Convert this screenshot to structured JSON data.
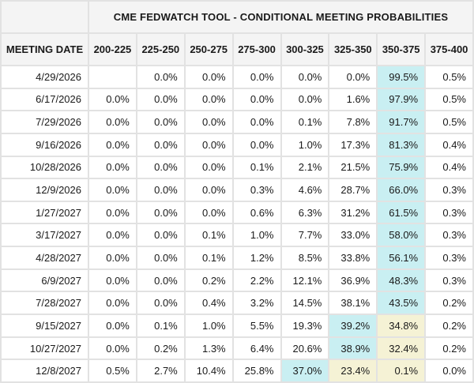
{
  "table": {
    "title": "CME FEDWATCH TOOL - CONDITIONAL MEETING PROBABILITIES",
    "date_column_header": "MEETING DATE",
    "rate_column_headers": [
      "200-225",
      "225-250",
      "250-275",
      "275-300",
      "300-325",
      "325-350",
      "350-375",
      "375-400"
    ],
    "rows": [
      {
        "date": "4/29/2026",
        "cells": [
          {
            "v": ""
          },
          {
            "v": "0.0%"
          },
          {
            "v": "0.0%"
          },
          {
            "v": "0.0%"
          },
          {
            "v": "0.0%"
          },
          {
            "v": "0.0%"
          },
          {
            "v": "99.5%",
            "hl": "cyan"
          },
          {
            "v": "0.5%"
          }
        ]
      },
      {
        "date": "6/17/2026",
        "cells": [
          {
            "v": "0.0%"
          },
          {
            "v": "0.0%"
          },
          {
            "v": "0.0%"
          },
          {
            "v": "0.0%"
          },
          {
            "v": "0.0%"
          },
          {
            "v": "1.6%"
          },
          {
            "v": "97.9%",
            "hl": "cyan"
          },
          {
            "v": "0.5%"
          }
        ]
      },
      {
        "date": "7/29/2026",
        "cells": [
          {
            "v": "0.0%"
          },
          {
            "v": "0.0%"
          },
          {
            "v": "0.0%"
          },
          {
            "v": "0.0%"
          },
          {
            "v": "0.1%"
          },
          {
            "v": "7.8%"
          },
          {
            "v": "91.7%",
            "hl": "cyan"
          },
          {
            "v": "0.5%"
          }
        ]
      },
      {
        "date": "9/16/2026",
        "cells": [
          {
            "v": "0.0%"
          },
          {
            "v": "0.0%"
          },
          {
            "v": "0.0%"
          },
          {
            "v": "0.0%"
          },
          {
            "v": "1.0%"
          },
          {
            "v": "17.3%"
          },
          {
            "v": "81.3%",
            "hl": "cyan"
          },
          {
            "v": "0.4%"
          }
        ]
      },
      {
        "date": "10/28/2026",
        "cells": [
          {
            "v": "0.0%"
          },
          {
            "v": "0.0%"
          },
          {
            "v": "0.0%"
          },
          {
            "v": "0.1%"
          },
          {
            "v": "2.1%"
          },
          {
            "v": "21.5%"
          },
          {
            "v": "75.9%",
            "hl": "cyan"
          },
          {
            "v": "0.4%"
          }
        ]
      },
      {
        "date": "12/9/2026",
        "cells": [
          {
            "v": "0.0%"
          },
          {
            "v": "0.0%"
          },
          {
            "v": "0.0%"
          },
          {
            "v": "0.3%"
          },
          {
            "v": "4.6%"
          },
          {
            "v": "28.7%"
          },
          {
            "v": "66.0%",
            "hl": "cyan"
          },
          {
            "v": "0.3%"
          }
        ]
      },
      {
        "date": "1/27/2027",
        "cells": [
          {
            "v": "0.0%"
          },
          {
            "v": "0.0%"
          },
          {
            "v": "0.0%"
          },
          {
            "v": "0.6%"
          },
          {
            "v": "6.3%"
          },
          {
            "v": "31.2%"
          },
          {
            "v": "61.5%",
            "hl": "cyan"
          },
          {
            "v": "0.3%"
          }
        ]
      },
      {
        "date": "3/17/2027",
        "cells": [
          {
            "v": "0.0%"
          },
          {
            "v": "0.0%"
          },
          {
            "v": "0.1%"
          },
          {
            "v": "1.0%"
          },
          {
            "v": "7.7%"
          },
          {
            "v": "33.0%"
          },
          {
            "v": "58.0%",
            "hl": "cyan"
          },
          {
            "v": "0.3%"
          }
        ]
      },
      {
        "date": "4/28/2027",
        "cells": [
          {
            "v": "0.0%"
          },
          {
            "v": "0.0%"
          },
          {
            "v": "0.1%"
          },
          {
            "v": "1.2%"
          },
          {
            "v": "8.5%"
          },
          {
            "v": "33.8%"
          },
          {
            "v": "56.1%",
            "hl": "cyan"
          },
          {
            "v": "0.3%"
          }
        ]
      },
      {
        "date": "6/9/2027",
        "cells": [
          {
            "v": "0.0%"
          },
          {
            "v": "0.0%"
          },
          {
            "v": "0.2%"
          },
          {
            "v": "2.2%"
          },
          {
            "v": "12.1%"
          },
          {
            "v": "36.9%"
          },
          {
            "v": "48.3%",
            "hl": "cyan"
          },
          {
            "v": "0.3%"
          }
        ]
      },
      {
        "date": "7/28/2027",
        "cells": [
          {
            "v": "0.0%"
          },
          {
            "v": "0.0%"
          },
          {
            "v": "0.4%"
          },
          {
            "v": "3.2%"
          },
          {
            "v": "14.5%"
          },
          {
            "v": "38.1%"
          },
          {
            "v": "43.5%",
            "hl": "cyan"
          },
          {
            "v": "0.2%"
          }
        ]
      },
      {
        "date": "9/15/2027",
        "cells": [
          {
            "v": "0.0%"
          },
          {
            "v": "0.1%"
          },
          {
            "v": "1.0%"
          },
          {
            "v": "5.5%"
          },
          {
            "v": "19.3%"
          },
          {
            "v": "39.2%",
            "hl": "cyan"
          },
          {
            "v": "34.8%",
            "hl": "yellow"
          },
          {
            "v": "0.2%"
          }
        ]
      },
      {
        "date": "10/27/2027",
        "cells": [
          {
            "v": "0.0%"
          },
          {
            "v": "0.2%"
          },
          {
            "v": "1.3%"
          },
          {
            "v": "6.4%"
          },
          {
            "v": "20.6%"
          },
          {
            "v": "38.9%",
            "hl": "cyan"
          },
          {
            "v": "32.4%",
            "hl": "yellow"
          },
          {
            "v": "0.2%"
          }
        ]
      },
      {
        "date": "12/8/2027",
        "cells": [
          {
            "v": "0.5%"
          },
          {
            "v": "2.7%"
          },
          {
            "v": "10.4%"
          },
          {
            "v": "25.8%"
          },
          {
            "v": "37.0%",
            "hl": "cyan"
          },
          {
            "v": "23.4%",
            "hl": "yellow"
          },
          {
            "v": "0.1%",
            "hl": "yellow"
          },
          {
            "v": "0.0%"
          }
        ]
      }
    ]
  },
  "colors": {
    "highlight_cyan": "#c9eff2",
    "highlight_yellow": "#f5f2d5",
    "header_bg": "#f4f4f4",
    "cell_bg": "#ffffff",
    "grid": "#e2e2e2",
    "text": "#1a1a1a"
  }
}
